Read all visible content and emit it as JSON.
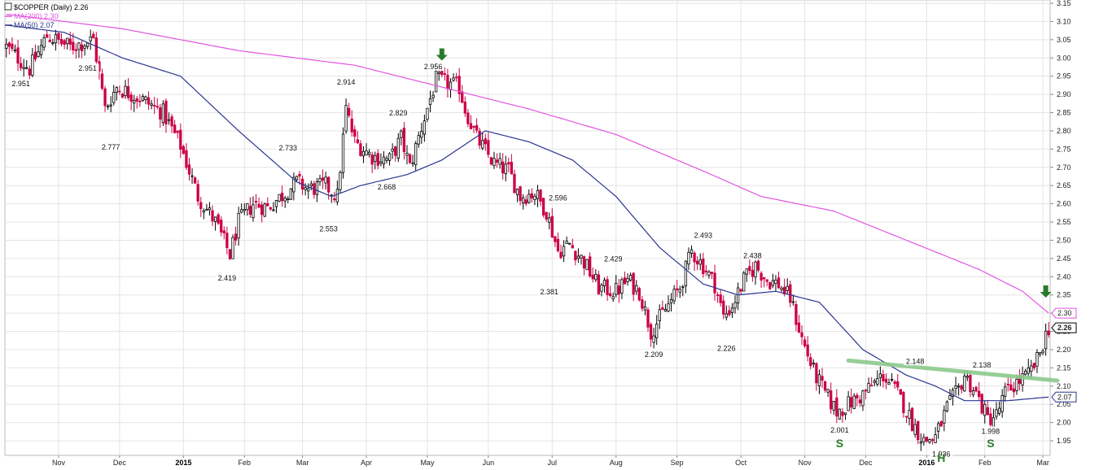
{
  "chart_data": {
    "type": "candlestick",
    "title": "$COPPER (Daily) 2.26",
    "legend": [
      {
        "label": "MA(200) 2.30",
        "color": "#e055e0"
      },
      {
        "label": "MA(50) 2.07",
        "color": "#2a3590"
      }
    ],
    "y_axis": {
      "position": "right",
      "ylim": [
        1.91,
        3.15
      ],
      "ticks": [
        "1.95",
        "2.00",
        "2.05",
        "2.10",
        "2.15",
        "2.20",
        "2.25",
        "2.30",
        "2.35",
        "2.40",
        "2.45",
        "2.50",
        "2.55",
        "2.60",
        "2.65",
        "2.70",
        "2.75",
        "2.80",
        "2.85",
        "2.90",
        "2.95",
        "3.00",
        "3.05",
        "3.10",
        "3.15"
      ]
    },
    "x_axis": {
      "ticks": [
        {
          "label": "Nov",
          "year": false,
          "i": 18
        },
        {
          "label": "Dec",
          "year": false,
          "i": 39
        },
        {
          "label": "2015",
          "year": true,
          "i": 61
        },
        {
          "label": "Feb",
          "year": false,
          "i": 82
        },
        {
          "label": "Mar",
          "year": false,
          "i": 102
        },
        {
          "label": "Apr",
          "year": false,
          "i": 124
        },
        {
          "label": "May",
          "year": false,
          "i": 145
        },
        {
          "label": "Jun",
          "year": false,
          "i": 166
        },
        {
          "label": "Jul",
          "year": false,
          "i": 188
        },
        {
          "label": "Aug",
          "year": false,
          "i": 210
        },
        {
          "label": "Sep",
          "year": false,
          "i": 231
        },
        {
          "label": "Oct",
          "year": false,
          "i": 253
        },
        {
          "label": "Nov",
          "year": false,
          "i": 275
        },
        {
          "label": "Dec",
          "year": false,
          "i": 296
        },
        {
          "label": "2016",
          "year": true,
          "i": 317
        },
        {
          "label": "Feb",
          "year": false,
          "i": 337
        },
        {
          "label": "Mar",
          "year": false,
          "i": 357
        }
      ]
    },
    "price_anchors": [
      [
        0,
        3.03
      ],
      [
        8,
        2.97
      ],
      [
        14,
        3.06
      ],
      [
        22,
        3.03
      ],
      [
        30,
        3.05
      ],
      [
        34,
        2.86
      ],
      [
        38,
        2.92
      ],
      [
        46,
        2.89
      ],
      [
        54,
        2.85
      ],
      [
        60,
        2.76
      ],
      [
        66,
        2.62
      ],
      [
        72,
        2.55
      ],
      [
        77,
        2.46
      ],
      [
        80,
        2.55
      ],
      [
        85,
        2.6
      ],
      [
        90,
        2.59
      ],
      [
        96,
        2.63
      ],
      [
        100,
        2.66
      ],
      [
        104,
        2.64
      ],
      [
        110,
        2.65
      ],
      [
        114,
        2.62
      ],
      [
        117,
        2.86
      ],
      [
        120,
        2.77
      ],
      [
        126,
        2.73
      ],
      [
        132,
        2.72
      ],
      [
        136,
        2.78
      ],
      [
        139,
        2.7
      ],
      [
        143,
        2.81
      ],
      [
        148,
        2.94
      ],
      [
        152,
        2.93
      ],
      [
        156,
        2.92
      ],
      [
        158,
        2.86
      ],
      [
        162,
        2.78
      ],
      [
        168,
        2.71
      ],
      [
        173,
        2.69
      ],
      [
        177,
        2.62
      ],
      [
        182,
        2.63
      ],
      [
        186,
        2.58
      ],
      [
        190,
        2.47
      ],
      [
        194,
        2.49
      ],
      [
        199,
        2.44
      ],
      [
        204,
        2.37
      ],
      [
        210,
        2.36
      ],
      [
        214,
        2.39
      ],
      [
        218,
        2.36
      ],
      [
        222,
        2.25
      ],
      [
        227,
        2.31
      ],
      [
        232,
        2.37
      ],
      [
        236,
        2.47
      ],
      [
        240,
        2.43
      ],
      [
        244,
        2.38
      ],
      [
        247,
        2.29
      ],
      [
        250,
        2.32
      ],
      [
        254,
        2.39
      ],
      [
        258,
        2.43
      ],
      [
        262,
        2.39
      ],
      [
        266,
        2.38
      ],
      [
        270,
        2.34
      ],
      [
        274,
        2.23
      ],
      [
        278,
        2.14
      ],
      [
        282,
        2.08
      ],
      [
        286,
        2.03
      ],
      [
        290,
        2.05
      ],
      [
        294,
        2.07
      ],
      [
        298,
        2.1
      ],
      [
        302,
        2.13
      ],
      [
        306,
        2.09
      ],
      [
        309,
        2.05
      ],
      [
        312,
        2.0
      ],
      [
        316,
        1.95
      ],
      [
        320,
        1.96
      ],
      [
        324,
        2.04
      ],
      [
        328,
        2.09
      ],
      [
        330,
        2.13
      ],
      [
        334,
        2.08
      ],
      [
        338,
        2.01
      ],
      [
        341,
        2.02
      ],
      [
        344,
        2.08
      ],
      [
        348,
        2.11
      ],
      [
        352,
        2.13
      ],
      [
        355,
        2.17
      ],
      [
        358,
        2.24
      ],
      [
        359,
        2.26
      ]
    ],
    "ma200_anchors": [
      [
        0,
        3.12
      ],
      [
        40,
        3.08
      ],
      [
        80,
        3.02
      ],
      [
        120,
        2.98
      ],
      [
        160,
        2.9
      ],
      [
        180,
        2.86
      ],
      [
        210,
        2.79
      ],
      [
        240,
        2.69
      ],
      [
        260,
        2.62
      ],
      [
        285,
        2.58
      ],
      [
        310,
        2.5
      ],
      [
        335,
        2.42
      ],
      [
        350,
        2.36
      ],
      [
        359,
        2.3
      ]
    ],
    "ma50_anchors": [
      [
        0,
        3.09
      ],
      [
        20,
        3.07
      ],
      [
        40,
        3.0
      ],
      [
        60,
        2.95
      ],
      [
        80,
        2.8
      ],
      [
        100,
        2.66
      ],
      [
        112,
        2.62
      ],
      [
        122,
        2.65
      ],
      [
        138,
        2.68
      ],
      [
        150,
        2.72
      ],
      [
        165,
        2.8
      ],
      [
        180,
        2.77
      ],
      [
        195,
        2.72
      ],
      [
        210,
        2.62
      ],
      [
        225,
        2.48
      ],
      [
        240,
        2.38
      ],
      [
        252,
        2.35
      ],
      [
        265,
        2.36
      ],
      [
        280,
        2.33
      ],
      [
        295,
        2.2
      ],
      [
        310,
        2.13
      ],
      [
        320,
        2.1
      ],
      [
        330,
        2.06
      ],
      [
        345,
        2.06
      ],
      [
        359,
        2.07
      ]
    ],
    "annotations": [
      {
        "text": "2.951",
        "i": 5,
        "price": 2.951,
        "pos": "below"
      },
      {
        "text": "2.951",
        "i": 28,
        "price": 2.951,
        "pos": "above"
      },
      {
        "text": "2.777",
        "i": 36,
        "price": 2.777,
        "pos": "below"
      },
      {
        "text": "2.419",
        "i": 76,
        "price": 2.419,
        "pos": "below"
      },
      {
        "text": "2.733",
        "i": 97,
        "price": 2.733,
        "pos": "above"
      },
      {
        "text": "2.553",
        "i": 111,
        "price": 2.553,
        "pos": "below"
      },
      {
        "text": "2.914",
        "i": 117,
        "price": 2.914,
        "pos": "above"
      },
      {
        "text": "2.829",
        "i": 135,
        "price": 2.829,
        "pos": "above"
      },
      {
        "text": "2.668",
        "i": 131,
        "price": 2.668,
        "pos": "below"
      },
      {
        "text": "2.956",
        "i": 147,
        "price": 2.956,
        "pos": "above"
      },
      {
        "text": "2.596",
        "i": 190,
        "price": 2.596,
        "pos": "above"
      },
      {
        "text": "2.381",
        "i": 187,
        "price": 2.381,
        "pos": "below"
      },
      {
        "text": "2.429",
        "i": 209,
        "price": 2.429,
        "pos": "above"
      },
      {
        "text": "2.209",
        "i": 223,
        "price": 2.209,
        "pos": "below"
      },
      {
        "text": "2.493",
        "i": 240,
        "price": 2.493,
        "pos": "above"
      },
      {
        "text": "2.226",
        "i": 248,
        "price": 2.226,
        "pos": "below"
      },
      {
        "text": "2.438",
        "i": 257,
        "price": 2.438,
        "pos": "above"
      },
      {
        "text": "2.001",
        "i": 287,
        "price": 2.001,
        "pos": "below"
      },
      {
        "text": "2.148",
        "i": 313,
        "price": 2.148,
        "pos": "above"
      },
      {
        "text": "1.936",
        "i": 322,
        "price": 1.936,
        "pos": "below"
      },
      {
        "text": "2.138",
        "i": 336,
        "price": 2.138,
        "pos": "above"
      },
      {
        "text": "1.998",
        "i": 339,
        "price": 1.998,
        "pos": "below"
      }
    ],
    "pattern_labels": [
      {
        "text": "S",
        "i": 287,
        "price": 1.955
      },
      {
        "text": "H",
        "i": 322,
        "price": 1.915
      },
      {
        "text": "S",
        "i": 339,
        "price": 1.955
      }
    ],
    "arrows": [
      {
        "i": 150,
        "price": 2.995
      },
      {
        "i": 358,
        "price": 2.345
      }
    ],
    "neckline": {
      "from": {
        "i": 290,
        "price": 2.17
      },
      "to": {
        "i": 362,
        "price": 2.115
      },
      "color": "#8cc98c"
    },
    "right_tags": [
      {
        "text": "2.30",
        "price": 2.3,
        "bold": false,
        "color": "#e055e0"
      },
      {
        "text": "2.26",
        "price": 2.26,
        "bold": true,
        "color": "#000000"
      },
      {
        "text": "2.07",
        "price": 2.07,
        "bold": false,
        "color": "#2a3590"
      }
    ],
    "colors": {
      "up": "#000000",
      "down": "#cc0044",
      "grid": "#e4e4e4",
      "arrow": "#2a7a2a"
    }
  }
}
